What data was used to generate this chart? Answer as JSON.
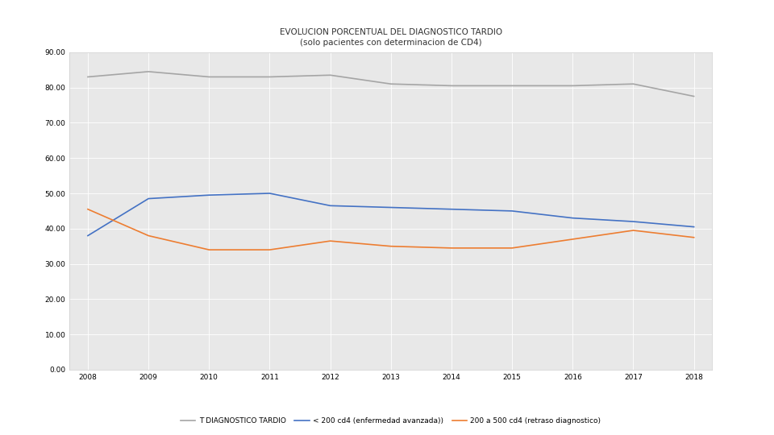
{
  "title_line1": "EVOLUCION PORCENTUAL DEL DIAGNOSTICO TARDIO",
  "title_line2": "(solo pacientes con determinacion de CD4)",
  "years": [
    2008,
    2009,
    2010,
    2011,
    2012,
    2013,
    2014,
    2015,
    2016,
    2017,
    2018
  ],
  "blue_series": [
    38.0,
    48.5,
    49.5,
    50.0,
    46.5,
    46.0,
    45.5,
    45.0,
    43.0,
    42.0,
    40.5
  ],
  "orange_series": [
    45.5,
    38.0,
    34.0,
    34.0,
    36.5,
    35.0,
    34.5,
    34.5,
    37.0,
    39.5,
    37.5
  ],
  "gray_series": [
    83.0,
    84.5,
    83.0,
    83.0,
    83.5,
    81.0,
    80.5,
    80.5,
    80.5,
    81.0,
    77.5
  ],
  "blue_color": "#4472C4",
  "orange_color": "#ED7D31",
  "gray_color": "#A5A5A5",
  "legend_blue": "< 200 cd4 (enfermedad avanzada))",
  "legend_orange": "200 a 500 cd4 (retraso diagnostico)",
  "legend_gray": "T DIAGNOSTICO TARDIO",
  "ylim_min": 0,
  "ylim_max": 90,
  "ytick_step": 10,
  "fig_bg_color": "#FFFFFF",
  "plot_area_color": "#E8E8E8",
  "title_fontsize": 7.5,
  "axis_fontsize": 6.5,
  "legend_fontsize": 6.5,
  "grid_color": "#FFFFFF",
  "grid_linewidth": 0.6
}
